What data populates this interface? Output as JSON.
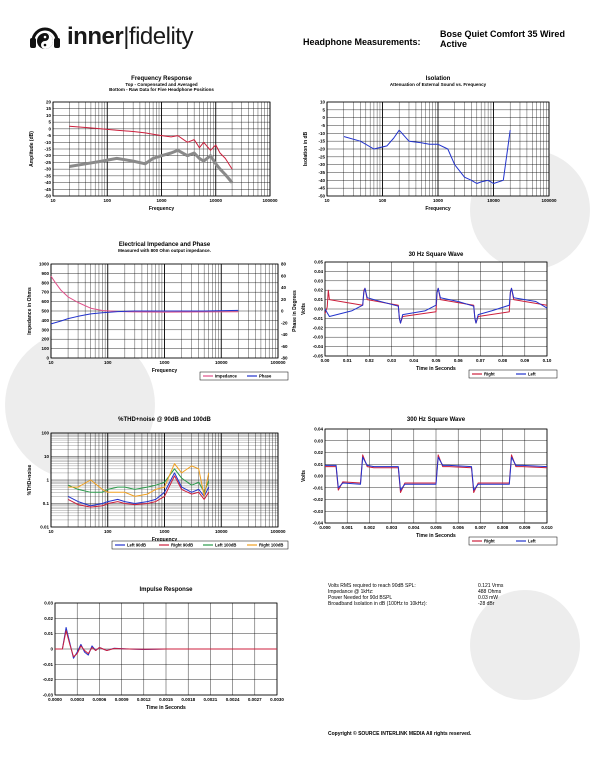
{
  "brand": {
    "inner": "inner",
    "fidelity": "fidelity"
  },
  "header": {
    "label": "Headphone Measurements:",
    "model_line1": "Bose Quiet Comfort 35 Wired",
    "model_line2": "Active"
  },
  "summary": [
    {
      "label": "Volts RMS required to reach 90dB SPL:",
      "value": "0.121  Vrms"
    },
    {
      "label": "Impedance @ 1kHz:",
      "value": "488  Ohms"
    },
    {
      "label": "Power Needed for 90d BSPL",
      "value": "0.03  mW"
    },
    {
      "label": "Broadband Isolation in dB (100Hz to 10kHz):",
      "value": "-28  dBr"
    }
  ],
  "copyright": "Copyright © SOURCE INTERLINK MEDIA All rights reserved.",
  "colors": {
    "red": "#cc1f3c",
    "blue": "#2233cc",
    "gray": "#8a8a8a",
    "pink": "#e0508a",
    "green": "#2a9a4a",
    "orange": "#f0a020"
  },
  "chart_data": [
    {
      "id": "freq",
      "type": "line",
      "xscale": "log",
      "title": "Frequency Response",
      "subtitle": "Top - Compensated and Averaged",
      "subtitle2": "Bottom - Raw Data for Five Headphone Positions",
      "xlabel": "Frequency",
      "ylabel": "Amplitude (dB)",
      "xlim": [
        10,
        100000
      ],
      "ylim": [
        -50,
        20
      ],
      "xticks": [
        "10",
        "100",
        "1000",
        "10000",
        "100000"
      ],
      "yticks": [
        "20",
        "15",
        "10",
        "5",
        "0",
        "-5",
        "-10",
        "-15",
        "-20",
        "-25",
        "-30",
        "-35",
        "-40",
        "-45",
        "-50"
      ],
      "series": [
        {
          "color": "red",
          "x": [
            20,
            40,
            80,
            150,
            300,
            500,
            700,
            1000,
            1500,
            2000,
            3000,
            4000,
            5000,
            6000,
            8000,
            10000,
            12000,
            15000,
            20000
          ],
          "y": [
            2,
            1,
            0,
            -1,
            -2,
            -3,
            -4,
            -5,
            -6,
            -5,
            -10,
            -8,
            -14,
            -10,
            -16,
            -12,
            -18,
            -22,
            -30
          ]
        },
        {
          "color": "gray",
          "x": [
            20,
            40,
            80,
            150,
            300,
            500,
            700,
            1000,
            1500,
            2000,
            3000,
            4000,
            5000,
            6000,
            8000,
            10000,
            12000,
            15000,
            20000
          ],
          "y": [
            -28,
            -26,
            -24,
            -22,
            -24,
            -26,
            -22,
            -20,
            -18,
            -16,
            -20,
            -18,
            -22,
            -24,
            -20,
            -26,
            -30,
            -34,
            -40
          ]
        }
      ]
    },
    {
      "id": "iso",
      "type": "line",
      "xscale": "log",
      "title": "Isolation",
      "subtitle": "Attenuation of External Sound vs. Frequency",
      "xlabel": "Frequency",
      "ylabel": "Isolation in dB",
      "xlim": [
        10,
        100000
      ],
      "ylim": [
        -50,
        10
      ],
      "xticks": [
        "10",
        "100",
        "1000",
        "10000",
        "100000"
      ],
      "yticks": [
        "10",
        "5",
        "0",
        "-5",
        "-10",
        "-15",
        "-20",
        "-25",
        "-30",
        "-35",
        "-40",
        "-45",
        "-50"
      ],
      "series": [
        {
          "color": "blue",
          "x": [
            20,
            40,
            70,
            120,
            160,
            200,
            300,
            500,
            700,
            1000,
            1500,
            2000,
            3000,
            4000,
            5000,
            6000,
            8000,
            10000,
            15000,
            20000
          ],
          "y": [
            -12,
            -15,
            -20,
            -18,
            -13,
            -8,
            -15,
            -16,
            -17,
            -17,
            -20,
            -30,
            -38,
            -40,
            -42,
            -41,
            -40,
            -42,
            -40,
            -8
          ]
        }
      ]
    },
    {
      "id": "imp",
      "type": "line",
      "xscale": "log",
      "title": "Electrical Impedance and Phase",
      "subtitle": "Measured with 800 Ohm output impedance.",
      "xlabel": "Frequency",
      "ylabel": "Impedance in Ohms",
      "y2label": "Phase in Degrees",
      "xlim": [
        10,
        100000
      ],
      "ylim": [
        0,
        1000
      ],
      "y2lim": [
        -80,
        80
      ],
      "xticks": [
        "10",
        "100",
        "1000",
        "10000",
        "100000"
      ],
      "yticks": [
        "1000",
        "900",
        "800",
        "700",
        "600",
        "500",
        "400",
        "300",
        "200",
        "100",
        "0"
      ],
      "y2ticks": [
        "80",
        "60",
        "40",
        "20",
        "0",
        "-20",
        "-40",
        "-60",
        "-80"
      ],
      "legend": [
        "Impedance",
        "Phase"
      ],
      "series": [
        {
          "name": "Impedance",
          "color": "pink",
          "axis": "y",
          "x": [
            10,
            12,
            15,
            20,
            30,
            50,
            80,
            150,
            300,
            1000,
            5000,
            20000
          ],
          "y": [
            870,
            800,
            720,
            650,
            590,
            530,
            505,
            495,
            490,
            488,
            490,
            492
          ]
        },
        {
          "name": "Phase",
          "color": "blue",
          "axis": "y2",
          "x": [
            10,
            15,
            20,
            30,
            50,
            80,
            150,
            300,
            1000,
            5000,
            20000
          ],
          "y": [
            -22,
            -17,
            -13,
            -9,
            -5,
            -3,
            -1,
            0,
            0,
            0,
            1
          ]
        }
      ]
    },
    {
      "id": "sq30",
      "type": "line",
      "xscale": "linear",
      "title": "30 Hz Square Wave",
      "xlabel": "Time in Seconds",
      "ylabel": "Volts",
      "xlim": [
        0,
        0.1
      ],
      "ylim": [
        -0.05,
        0.05
      ],
      "xticks": [
        "0.00",
        "0.01",
        "0.02",
        "0.03",
        "0.04",
        "0.05",
        "0.06",
        "0.07",
        "0.08",
        "0.09",
        "0.10"
      ],
      "yticks": [
        "0.05",
        "0.04",
        "0.03",
        "0.02",
        "0.01",
        "0.00",
        "-0.01",
        "-0.02",
        "-0.03",
        "-0.04",
        "-0.05"
      ],
      "legend": [
        "Right",
        "Left"
      ],
      "series": [
        {
          "name": "Right",
          "color": "red",
          "x": [
            0,
            0.001,
            0.0015,
            0.002,
            0.017,
            0.0175,
            0.018,
            0.019,
            0.033,
            0.0335,
            0.034,
            0.035,
            0.05,
            0.0505,
            0.051,
            0.052,
            0.067,
            0.0675,
            0.068,
            0.069,
            0.083,
            0.0835,
            0.084,
            0.085,
            0.1
          ],
          "y": [
            -0.005,
            0.002,
            0.02,
            0.01,
            0.004,
            0.02,
            0.022,
            0.01,
            0.004,
            -0.01,
            -0.015,
            -0.008,
            -0.003,
            0.018,
            0.022,
            0.01,
            0.004,
            -0.01,
            -0.015,
            -0.008,
            -0.003,
            0.018,
            0.022,
            0.01,
            0.004
          ]
        },
        {
          "name": "Left",
          "color": "blue",
          "x": [
            0,
            0.002,
            0.012,
            0.017,
            0.0175,
            0.018,
            0.019,
            0.025,
            0.033,
            0.0335,
            0.034,
            0.035,
            0.045,
            0.05,
            0.0505,
            0.051,
            0.052,
            0.06,
            0.067,
            0.0675,
            0.068,
            0.069,
            0.075,
            0.083,
            0.0835,
            0.084,
            0.085,
            0.095,
            0.1
          ],
          "y": [
            0,
            -0.008,
            -0.002,
            0.004,
            0.018,
            0.022,
            0.012,
            0.008,
            0.003,
            -0.01,
            -0.015,
            -0.006,
            -0.002,
            0.004,
            0.018,
            0.022,
            0.012,
            0.008,
            0.003,
            -0.01,
            -0.015,
            -0.006,
            -0.002,
            0.004,
            0.018,
            0.022,
            0.012,
            0.008,
            0.001
          ]
        }
      ]
    },
    {
      "id": "thd",
      "type": "line",
      "xscale": "log",
      "yscale": "log",
      "title": "%THD+noise @ 90dB and 100dB",
      "xlabel": "Frequency",
      "ylabel": "%THD+noise",
      "xlim": [
        10,
        100000
      ],
      "ylim": [
        0.01,
        100
      ],
      "xticks": [
        "10",
        "100",
        "1000",
        "10000",
        "100000"
      ],
      "yticks": [
        "100",
        "10",
        "1",
        "0.1",
        "0.01"
      ],
      "legend": [
        "Left 90dB",
        "Right 90dB",
        "Left 100dB",
        "Right 100dB"
      ],
      "series": [
        {
          "name": "Left 90dB",
          "color": "blue",
          "x": [
            20,
            30,
            50,
            80,
            100,
            150,
            200,
            300,
            500,
            700,
            1000,
            1500,
            2000,
            3000,
            4000,
            5000,
            6000
          ],
          "y": [
            0.2,
            0.12,
            0.08,
            0.1,
            0.12,
            0.15,
            0.12,
            0.1,
            0.12,
            0.15,
            0.3,
            2,
            0.5,
            0.3,
            0.4,
            0.2,
            0.5
          ]
        },
        {
          "name": "Right 90dB",
          "color": "red",
          "x": [
            20,
            30,
            50,
            80,
            100,
            150,
            200,
            300,
            500,
            700,
            1000,
            1500,
            2000,
            3000,
            4000,
            5000,
            6000
          ],
          "y": [
            0.15,
            0.09,
            0.07,
            0.08,
            0.1,
            0.12,
            0.1,
            0.09,
            0.1,
            0.12,
            0.2,
            1.5,
            0.4,
            0.25,
            0.3,
            0.15,
            0.3
          ]
        },
        {
          "name": "Left 100dB",
          "color": "green",
          "x": [
            20,
            30,
            50,
            80,
            100,
            150,
            200,
            300,
            500,
            700,
            1000,
            1500,
            2000,
            3000,
            4000,
            5000,
            6000
          ],
          "y": [
            0.6,
            0.4,
            0.3,
            0.3,
            0.4,
            0.5,
            0.5,
            0.4,
            0.5,
            0.6,
            0.8,
            3,
            1.2,
            0.6,
            0.8,
            0.3,
            0.9
          ]
        },
        {
          "name": "Right 100dB",
          "color": "orange",
          "x": [
            20,
            30,
            50,
            80,
            100,
            150,
            200,
            300,
            500,
            700,
            1000,
            1500,
            2000,
            3000,
            4000,
            5000,
            6000
          ],
          "y": [
            0.5,
            0.5,
            1,
            0.4,
            0.3,
            0.3,
            0.3,
            0.2,
            0.25,
            0.4,
            0.5,
            5,
            2,
            4,
            3,
            0.2,
            2
          ]
        }
      ]
    },
    {
      "id": "sq300",
      "type": "line",
      "xscale": "linear",
      "title": "300 Hz Square Wave",
      "xlabel": "Time in Seconds",
      "ylabel": "Volts",
      "xlim": [
        0,
        0.01
      ],
      "ylim": [
        -0.04,
        0.04
      ],
      "xticks": [
        "0.000",
        "0.001",
        "0.002",
        "0.003",
        "0.004",
        "0.005",
        "0.006",
        "0.007",
        "0.008",
        "0.009",
        "0.010"
      ],
      "yticks": [
        "0.04",
        "0.03",
        "0.02",
        "0.01",
        "0.00",
        "-0.01",
        "-0.02",
        "-0.03",
        "-0.04"
      ],
      "legend": [
        "Right",
        "Left"
      ],
      "series": [
        {
          "name": "Right",
          "color": "red",
          "x": [
            0,
            0.0005,
            0.0006,
            0.0008,
            0.0016,
            0.0017,
            0.0019,
            0.0022,
            0.0033,
            0.0034,
            0.0036,
            0.0038,
            0.005,
            0.0051,
            0.0053,
            0.0056,
            0.0066,
            0.0067,
            0.0069,
            0.0072,
            0.0083,
            0.0084,
            0.0086,
            0.0089,
            0.01
          ],
          "y": [
            0.008,
            0.008,
            -0.012,
            -0.005,
            -0.006,
            0.018,
            0.008,
            0.007,
            0.007,
            -0.014,
            -0.006,
            -0.006,
            -0.006,
            0.018,
            0.008,
            0.008,
            0.007,
            -0.014,
            -0.006,
            -0.006,
            -0.006,
            0.018,
            0.008,
            0.008,
            0.007
          ]
        },
        {
          "name": "Left",
          "color": "blue",
          "x": [
            0,
            0.0005,
            0.0006,
            0.0008,
            0.0016,
            0.0017,
            0.0019,
            0.0022,
            0.0033,
            0.0034,
            0.0036,
            0.0038,
            0.005,
            0.0051,
            0.0053,
            0.0056,
            0.0066,
            0.0067,
            0.0069,
            0.0072,
            0.0083,
            0.0084,
            0.0086,
            0.0089,
            0.01
          ],
          "y": [
            0.009,
            0.009,
            -0.01,
            -0.006,
            -0.007,
            0.016,
            0.009,
            0.008,
            0.008,
            -0.012,
            -0.007,
            -0.007,
            -0.007,
            0.016,
            0.009,
            0.009,
            0.008,
            -0.012,
            -0.007,
            -0.007,
            -0.007,
            0.016,
            0.009,
            0.009,
            0.008
          ]
        }
      ]
    },
    {
      "id": "impulse",
      "type": "line",
      "xscale": "linear",
      "title": "Impulse Response",
      "xlabel": "Time in Seconds",
      "ylabel": "",
      "xlim": [
        0,
        0.003
      ],
      "ylim": [
        -0.03,
        0.03
      ],
      "xticks": [
        "0.0000",
        "0.0003",
        "0.0006",
        "0.0009",
        "0.0012",
        "0.0015",
        "0.0018",
        "0.0021",
        "0.0024",
        "0.0027",
        "0.0030"
      ],
      "yticks": [
        "0.03",
        "0.02",
        "0.01",
        "0",
        "-0.01",
        "-0.02",
        "-0.03"
      ],
      "series": [
        {
          "color": "blue",
          "x": [
            0,
            0.0001,
            0.00015,
            0.0002,
            0.00025,
            0.0003,
            0.00035,
            0.0004,
            0.00045,
            0.0005,
            0.00055,
            0.0006,
            0.0007,
            0.0008,
            0.001,
            0.0012,
            0.0015,
            0.002,
            0.003
          ],
          "y": [
            0,
            0,
            0.014,
            0.004,
            -0.006,
            -0.002,
            0.003,
            -0.002,
            -0.004,
            0.002,
            -0.001,
            0.001,
            -0.001,
            0.0005,
            0,
            -0.0003,
            0,
            0,
            0
          ]
        },
        {
          "color": "red",
          "x": [
            0,
            0.0001,
            0.00015,
            0.0002,
            0.00025,
            0.0003,
            0.00035,
            0.0004,
            0.00045,
            0.0005,
            0.00055,
            0.0006,
            0.0007,
            0.0008,
            0.001,
            0.0012,
            0.0015,
            0.002,
            0.003
          ],
          "y": [
            0,
            0,
            0.012,
            0.003,
            -0.005,
            -0.003,
            0.002,
            -0.001,
            -0.003,
            0.001,
            -0.001,
            0.001,
            -0.001,
            0.0003,
            0,
            -0.0002,
            0,
            0,
            0
          ]
        }
      ]
    }
  ]
}
